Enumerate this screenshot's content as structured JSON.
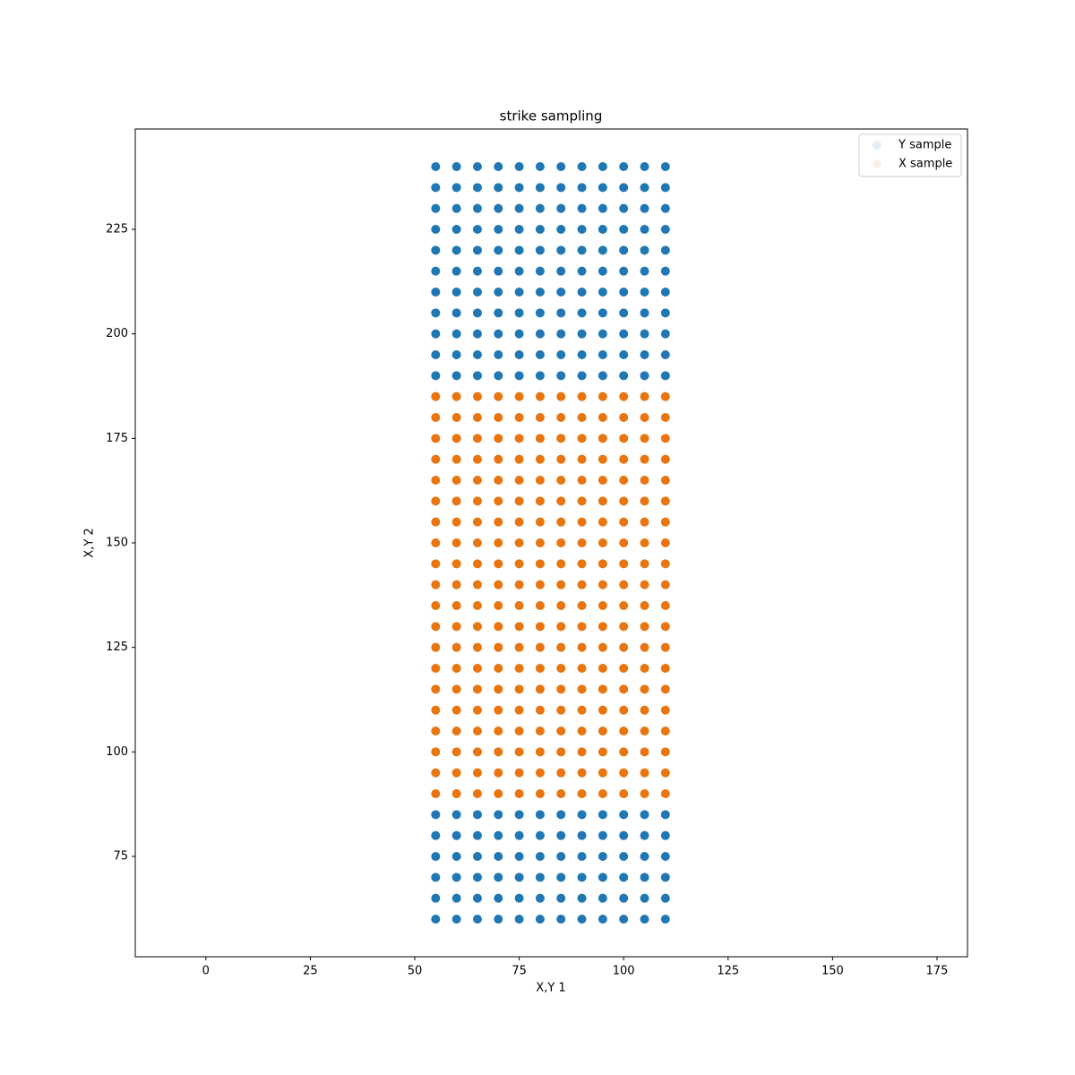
{
  "chart_data": {
    "type": "scatter",
    "title": "strike sampling",
    "x_label": "X,Y 1",
    "y_label": "X,Y 2",
    "xlim": [
      -16.9,
      182.3
    ],
    "ylim": [
      51,
      249
    ],
    "xticks": [
      0,
      25,
      50,
      75,
      100,
      125,
      150,
      175
    ],
    "yticks": [
      75,
      100,
      125,
      150,
      175,
      200,
      225
    ],
    "legend": "upper right",
    "series": [
      {
        "name": "Y sample",
        "color": "#1f77b4",
        "x": [
          55,
          60,
          65,
          70,
          75,
          80,
          85,
          90,
          95,
          100,
          105,
          110,
          55,
          60,
          65,
          70,
          75,
          80,
          85,
          90,
          95,
          100,
          105,
          110,
          55,
          60,
          65,
          70,
          75,
          80,
          85,
          90,
          95,
          100,
          105,
          110,
          55,
          60,
          65,
          70,
          75,
          80,
          85,
          90,
          95,
          100,
          105,
          110,
          55,
          60,
          65,
          70,
          75,
          80,
          85,
          90,
          95,
          100,
          105,
          110,
          55,
          60,
          65,
          70,
          75,
          80,
          85,
          90,
          95,
          100,
          105,
          110,
          55,
          60,
          65,
          70,
          75,
          80,
          85,
          90,
          95,
          100,
          105,
          110,
          55,
          60,
          65,
          70,
          75,
          80,
          85,
          90,
          95,
          100,
          105,
          110,
          55,
          60,
          65,
          70,
          75,
          80,
          85,
          90,
          95,
          100,
          105,
          110,
          55,
          60,
          65,
          70,
          75,
          80,
          85,
          90,
          95,
          100,
          105,
          110,
          55,
          60,
          65,
          70,
          75,
          80,
          85,
          90,
          95,
          100,
          105,
          110,
          55,
          60,
          65,
          70,
          75,
          80,
          85,
          90,
          95,
          100,
          105,
          110,
          55,
          60,
          65,
          70,
          75,
          80,
          85,
          90,
          95,
          100,
          105,
          110,
          55,
          60,
          65,
          70,
          75,
          80,
          85,
          90,
          95,
          100,
          105,
          110,
          55,
          60,
          65,
          70,
          75,
          80,
          85,
          90,
          95,
          100,
          105,
          110,
          55,
          60,
          65,
          70,
          75,
          80,
          85,
          90,
          95,
          100,
          105,
          110,
          55,
          60,
          65,
          70,
          75,
          80,
          85,
          90,
          95,
          100,
          105,
          110
        ],
        "y": [
          60,
          60,
          60,
          60,
          60,
          60,
          60,
          60,
          60,
          60,
          60,
          60,
          65,
          65,
          65,
          65,
          65,
          65,
          65,
          65,
          65,
          65,
          65,
          65,
          70,
          70,
          70,
          70,
          70,
          70,
          70,
          70,
          70,
          70,
          70,
          70,
          75,
          75,
          75,
          75,
          75,
          75,
          75,
          75,
          75,
          75,
          75,
          75,
          80,
          80,
          80,
          80,
          80,
          80,
          80,
          80,
          80,
          80,
          80,
          80,
          85,
          85,
          85,
          85,
          85,
          85,
          85,
          85,
          85,
          85,
          85,
          85,
          190,
          190,
          190,
          190,
          190,
          190,
          190,
          190,
          190,
          190,
          190,
          190,
          195,
          195,
          195,
          195,
          195,
          195,
          195,
          195,
          195,
          195,
          195,
          195,
          200,
          200,
          200,
          200,
          200,
          200,
          200,
          200,
          200,
          200,
          200,
          200,
          205,
          205,
          205,
          205,
          205,
          205,
          205,
          205,
          205,
          205,
          205,
          205,
          210,
          210,
          210,
          210,
          210,
          210,
          210,
          210,
          210,
          210,
          210,
          210,
          215,
          215,
          215,
          215,
          215,
          215,
          215,
          215,
          215,
          215,
          215,
          215,
          220,
          220,
          220,
          220,
          220,
          220,
          220,
          220,
          220,
          220,
          220,
          220,
          225,
          225,
          225,
          225,
          225,
          225,
          225,
          225,
          225,
          225,
          225,
          225,
          230,
          230,
          230,
          230,
          230,
          230,
          230,
          230,
          230,
          230,
          230,
          230,
          235,
          235,
          235,
          235,
          235,
          235,
          235,
          235,
          235,
          235,
          235,
          235,
          240,
          240,
          240,
          240,
          240,
          240,
          240,
          240,
          240,
          240,
          240,
          240
        ]
      },
      {
        "name": "X sample",
        "color": "#e8750f",
        "x": [
          55,
          60,
          65,
          70,
          75,
          80,
          85,
          90,
          95,
          100,
          105,
          110,
          55,
          60,
          65,
          70,
          75,
          80,
          85,
          90,
          95,
          100,
          105,
          110,
          55,
          60,
          65,
          70,
          75,
          80,
          85,
          90,
          95,
          100,
          105,
          110,
          55,
          60,
          65,
          70,
          75,
          80,
          85,
          90,
          95,
          100,
          105,
          110,
          55,
          60,
          65,
          70,
          75,
          80,
          85,
          90,
          95,
          100,
          105,
          110,
          55,
          60,
          65,
          70,
          75,
          80,
          85,
          90,
          95,
          100,
          105,
          110,
          55,
          60,
          65,
          70,
          75,
          80,
          85,
          90,
          95,
          100,
          105,
          110,
          55,
          60,
          65,
          70,
          75,
          80,
          85,
          90,
          95,
          100,
          105,
          110,
          55,
          60,
          65,
          70,
          75,
          80,
          85,
          90,
          95,
          100,
          105,
          110,
          55,
          60,
          65,
          70,
          75,
          80,
          85,
          90,
          95,
          100,
          105,
          110,
          55,
          60,
          65,
          70,
          75,
          80,
          85,
          90,
          95,
          100,
          105,
          110,
          55,
          60,
          65,
          70,
          75,
          80,
          85,
          90,
          95,
          100,
          105,
          110,
          55,
          60,
          65,
          70,
          75,
          80,
          85,
          90,
          95,
          100,
          105,
          110,
          55,
          60,
          65,
          70,
          75,
          80,
          85,
          90,
          95,
          100,
          105,
          110,
          55,
          60,
          65,
          70,
          75,
          80,
          85,
          90,
          95,
          100,
          105,
          110,
          55,
          60,
          65,
          70,
          75,
          80,
          85,
          90,
          95,
          100,
          105,
          110,
          55,
          60,
          65,
          70,
          75,
          80,
          85,
          90,
          95,
          100,
          105,
          110,
          55,
          60,
          65,
          70,
          75,
          80,
          85,
          90,
          95,
          100,
          105,
          110,
          55,
          60,
          65,
          70,
          75,
          80,
          85,
          90,
          95,
          100,
          105,
          110,
          55,
          60,
          65,
          70,
          75,
          80,
          85,
          90,
          95,
          100,
          105,
          110
        ],
        "y": [
          90,
          90,
          90,
          90,
          90,
          90,
          90,
          90,
          90,
          90,
          90,
          90,
          95,
          95,
          95,
          95,
          95,
          95,
          95,
          95,
          95,
          95,
          95,
          95,
          100,
          100,
          100,
          100,
          100,
          100,
          100,
          100,
          100,
          100,
          100,
          100,
          105,
          105,
          105,
          105,
          105,
          105,
          105,
          105,
          105,
          105,
          105,
          105,
          110,
          110,
          110,
          110,
          110,
          110,
          110,
          110,
          110,
          110,
          110,
          110,
          115,
          115,
          115,
          115,
          115,
          115,
          115,
          115,
          115,
          115,
          115,
          115,
          120,
          120,
          120,
          120,
          120,
          120,
          120,
          120,
          120,
          120,
          120,
          120,
          125,
          125,
          125,
          125,
          125,
          125,
          125,
          125,
          125,
          125,
          125,
          125,
          130,
          130,
          130,
          130,
          130,
          130,
          130,
          130,
          130,
          130,
          130,
          130,
          135,
          135,
          135,
          135,
          135,
          135,
          135,
          135,
          135,
          135,
          135,
          135,
          140,
          140,
          140,
          140,
          140,
          140,
          140,
          140,
          140,
          140,
          140,
          140,
          145,
          145,
          145,
          145,
          145,
          145,
          145,
          145,
          145,
          145,
          145,
          145,
          150,
          150,
          150,
          150,
          150,
          150,
          150,
          150,
          150,
          150,
          150,
          150,
          155,
          155,
          155,
          155,
          155,
          155,
          155,
          155,
          155,
          155,
          155,
          155,
          160,
          160,
          160,
          160,
          160,
          160,
          160,
          160,
          160,
          160,
          160,
          160,
          165,
          165,
          165,
          165,
          165,
          165,
          165,
          165,
          165,
          165,
          165,
          165,
          170,
          170,
          170,
          170,
          170,
          170,
          170,
          170,
          170,
          170,
          170,
          170,
          175,
          175,
          175,
          175,
          175,
          175,
          175,
          175,
          175,
          175,
          175,
          175,
          180,
          180,
          180,
          180,
          180,
          180,
          180,
          180,
          180,
          180,
          180,
          180,
          185,
          185,
          185,
          185,
          185,
          185,
          185,
          185,
          185,
          185,
          185,
          185
        ]
      }
    ]
  }
}
